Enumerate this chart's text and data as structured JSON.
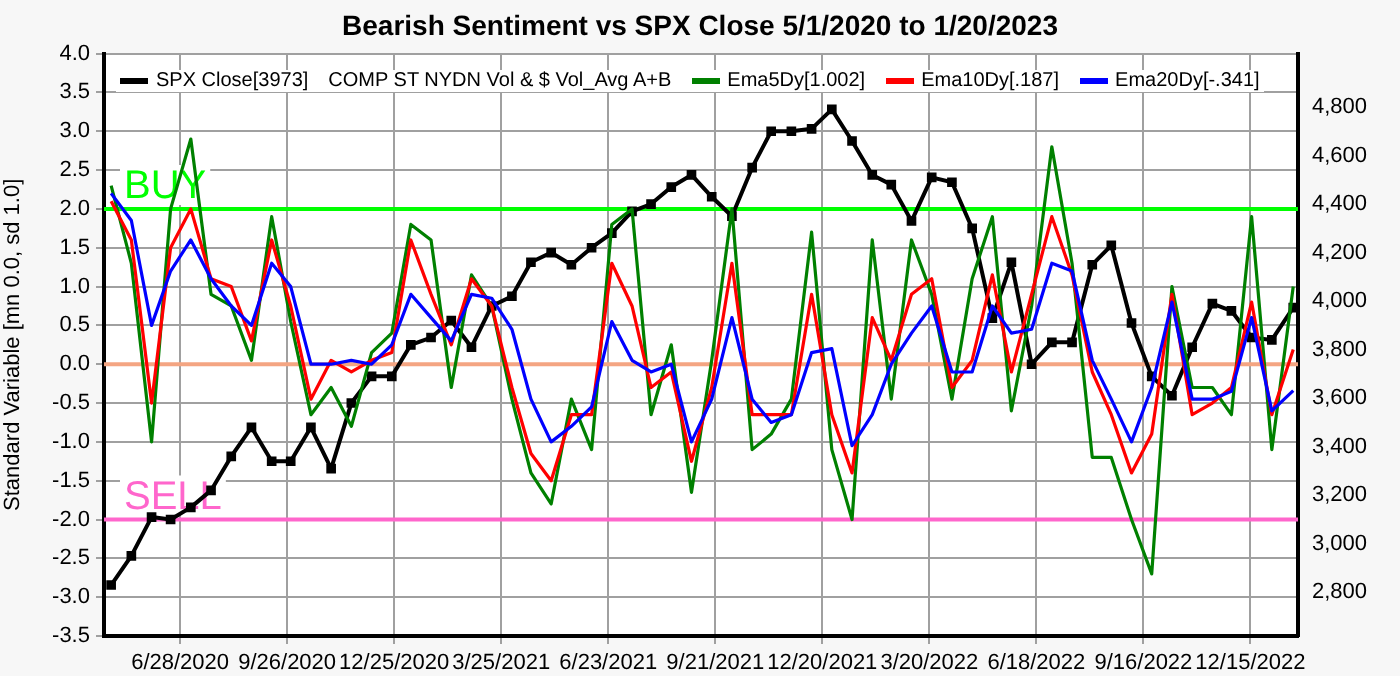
{
  "chart_data": {
    "type": "line",
    "title": "Bearish Sentiment vs SPX Close 5/1/2020 to 1/20/2023",
    "ylabel": "Standard Variable [mn 0.0, sd 1.0]",
    "legend_title": "COMP ST NYDN Vol & $ Vol_Avg A+B",
    "legend": "top",
    "grid": true,
    "line_style": "solid",
    "x": [
      "2020-05-01",
      "2020-05-18",
      "2020-06-04",
      "2020-06-20",
      "2020-07-07",
      "2020-07-24",
      "2020-08-10",
      "2020-08-27",
      "2020-09-13",
      "2020-09-29",
      "2020-10-16",
      "2020-11-02",
      "2020-11-19",
      "2020-12-06",
      "2020-12-23",
      "2021-01-08",
      "2021-01-25",
      "2021-02-11",
      "2021-02-28",
      "2021-03-17",
      "2021-04-03",
      "2021-04-19",
      "2021-05-06",
      "2021-05-23",
      "2021-06-09",
      "2021-06-26",
      "2021-07-13",
      "2021-07-29",
      "2021-08-15",
      "2021-09-01",
      "2021-09-18",
      "2021-10-05",
      "2021-10-22",
      "2021-11-07",
      "2021-11-24",
      "2021-12-11",
      "2021-12-28",
      "2022-01-14",
      "2022-01-31",
      "2022-02-16",
      "2022-03-05",
      "2022-03-22",
      "2022-04-08",
      "2022-04-25",
      "2022-05-12",
      "2022-05-28",
      "2022-06-14",
      "2022-07-01",
      "2022-07-18",
      "2022-08-04",
      "2022-08-20",
      "2022-09-06",
      "2022-09-23",
      "2022-10-10",
      "2022-10-27",
      "2022-11-13",
      "2022-11-29",
      "2022-12-16",
      "2023-01-02",
      "2023-01-20"
    ],
    "series": [
      {
        "name": "SPX Close[3973]",
        "color": "#000000",
        "axis": "y2",
        "marker": "square",
        "values": [
          2830,
          2950,
          3110,
          3100,
          3150,
          3220,
          3360,
          3480,
          3340,
          3340,
          3480,
          3310,
          3580,
          3690,
          3690,
          3820,
          3850,
          3920,
          3810,
          3980,
          4020,
          4160,
          4200,
          4150,
          4220,
          4280,
          4370,
          4400,
          4470,
          4520,
          4430,
          4350,
          4550,
          4700,
          4700,
          4710,
          4790,
          4660,
          4520,
          4480,
          4330,
          4510,
          4490,
          4300,
          3930,
          4160,
          3740,
          3830,
          3830,
          4150,
          4230,
          3910,
          3690,
          3610,
          3810,
          3990,
          3960,
          3850,
          3840,
          3973
        ]
      },
      {
        "name": "Ema5Dy[1.002]",
        "color": "#008000",
        "marker": "none",
        "values": [
          2.3,
          1.3,
          -1.0,
          2.0,
          2.9,
          0.9,
          0.75,
          0.05,
          1.9,
          0.55,
          -0.65,
          -0.3,
          -0.8,
          0.15,
          0.4,
          1.8,
          1.6,
          -0.3,
          1.15,
          0.75,
          -0.45,
          -1.4,
          -1.8,
          -0.45,
          -1.1,
          1.8,
          2.0,
          -0.65,
          0.25,
          -1.65,
          0.05,
          2.0,
          -1.1,
          -0.9,
          -0.45,
          1.7,
          -1.1,
          -2.0,
          1.6,
          -0.45,
          1.6,
          0.9,
          -0.45,
          1.1,
          1.9,
          -0.6,
          0.75,
          2.8,
          1.3,
          -1.2,
          -1.2,
          -2.0,
          -2.7,
          1.0,
          -0.3,
          -0.3,
          -0.65,
          1.9,
          -1.1,
          1.0
        ]
      },
      {
        "name": "Ema10Dy[.187]",
        "color": "#ff0000",
        "marker": "none",
        "values": [
          2.1,
          1.6,
          -0.5,
          1.5,
          2.0,
          1.1,
          1.0,
          0.3,
          1.6,
          0.75,
          -0.45,
          0.05,
          -0.1,
          0.05,
          0.15,
          1.6,
          0.9,
          0.25,
          1.1,
          0.75,
          -0.3,
          -1.15,
          -1.5,
          -0.65,
          -0.65,
          1.3,
          0.75,
          -0.3,
          -0.1,
          -1.25,
          -0.3,
          1.3,
          -0.65,
          -0.65,
          -0.65,
          0.9,
          -0.65,
          -1.4,
          0.6,
          0.05,
          0.9,
          1.1,
          -0.3,
          0.05,
          1.15,
          -0.1,
          0.9,
          1.9,
          1.15,
          -0.1,
          -0.65,
          -1.4,
          -0.9,
          0.9,
          -0.65,
          -0.5,
          -0.3,
          0.8,
          -0.65,
          0.19
        ]
      },
      {
        "name": "Ema20Dy[-.341]",
        "color": "#0000ff",
        "marker": "none",
        "values": [
          2.2,
          1.85,
          0.5,
          1.2,
          1.6,
          1.1,
          0.75,
          0.5,
          1.3,
          1.0,
          0.0,
          0.0,
          0.05,
          0.0,
          0.25,
          0.9,
          0.6,
          0.3,
          0.9,
          0.85,
          0.45,
          -0.45,
          -1.0,
          -0.8,
          -0.55,
          0.55,
          0.05,
          -0.1,
          0.0,
          -1.0,
          -0.45,
          0.6,
          -0.45,
          -0.75,
          -0.65,
          0.15,
          0.2,
          -1.05,
          -0.65,
          0.0,
          0.4,
          0.75,
          -0.1,
          -0.1,
          0.75,
          0.4,
          0.45,
          1.3,
          1.2,
          0.05,
          -0.45,
          -1.0,
          -0.3,
          0.8,
          -0.45,
          -0.45,
          -0.35,
          0.6,
          -0.6,
          -0.34
        ]
      }
    ],
    "xlim": [
      "2020-04-25",
      "2023-01-24"
    ],
    "xticks": [
      {
        "value": "2020-06-28",
        "label": "6/28/2020"
      },
      {
        "value": "2020-09-26",
        "label": "9/26/2020"
      },
      {
        "value": "2020-12-25",
        "label": "12/25/2020"
      },
      {
        "value": "2021-03-25",
        "label": "3/25/2021"
      },
      {
        "value": "2021-06-23",
        "label": "6/23/2021"
      },
      {
        "value": "2021-09-21",
        "label": "9/21/2021"
      },
      {
        "value": "2021-12-20",
        "label": "12/20/2021"
      },
      {
        "value": "2022-03-20",
        "label": "3/20/2022"
      },
      {
        "value": "2022-06-18",
        "label": "6/18/2022"
      },
      {
        "value": "2022-09-16",
        "label": "9/16/2022"
      },
      {
        "value": "2022-12-15",
        "label": "12/15/2022"
      }
    ],
    "ylim": [
      -3.5,
      4.0
    ],
    "yticks": [
      {
        "value": -3.5,
        "label": "-3.5"
      },
      {
        "value": -3,
        "label": "-3.0"
      },
      {
        "value": -2.5,
        "label": "-2.5"
      },
      {
        "value": -2,
        "label": "-2.0"
      },
      {
        "value": -1.5,
        "label": "-1.5"
      },
      {
        "value": -1,
        "label": "-1.0"
      },
      {
        "value": -0.5,
        "label": "-0.5"
      },
      {
        "value": 0,
        "label": "0.0"
      },
      {
        "value": 0.5,
        "label": "0.5"
      },
      {
        "value": 1,
        "label": "1.0"
      },
      {
        "value": 1.5,
        "label": "1.5"
      },
      {
        "value": 2,
        "label": "2.0"
      },
      {
        "value": 2.5,
        "label": "2.5"
      },
      {
        "value": 3,
        "label": "3.0"
      },
      {
        "value": 3.5,
        "label": "3.5"
      },
      {
        "value": 4,
        "label": "4.0"
      }
    ],
    "y2lim": [
      2620,
      5020
    ],
    "y2ticks": [
      {
        "value": 2800,
        "label": "2,800"
      },
      {
        "value": 3000,
        "label": "3,000"
      },
      {
        "value": 3200,
        "label": "3,200"
      },
      {
        "value": 3400,
        "label": "3,400"
      },
      {
        "value": 3600,
        "label": "3,600"
      },
      {
        "value": 3800,
        "label": "3,800"
      },
      {
        "value": 4000,
        "label": "4,000"
      },
      {
        "value": 4200,
        "label": "4,200"
      },
      {
        "value": 4400,
        "label": "4,400"
      },
      {
        "value": 4600,
        "label": "4,600"
      },
      {
        "value": 4800,
        "label": "4,800"
      }
    ],
    "ref_lines": [
      {
        "axis": "y",
        "value": 2,
        "label": "BUY",
        "color": "#00ff00"
      },
      {
        "axis": "y",
        "value": 0,
        "label": null,
        "color": "#f4a582"
      },
      {
        "axis": "y",
        "value": -2,
        "label": "SELL",
        "color": "#ff66cc"
      }
    ]
  }
}
